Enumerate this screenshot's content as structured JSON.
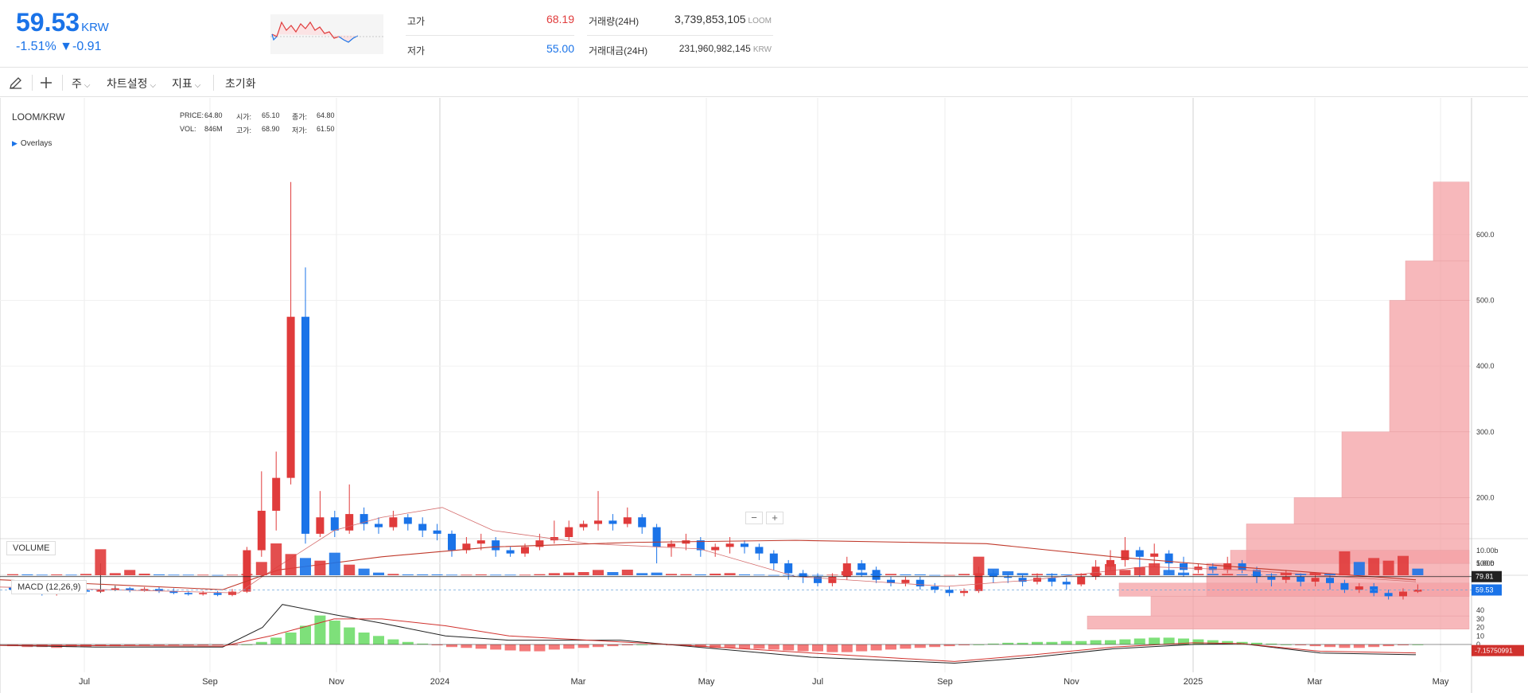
{
  "ticker": {
    "price": "59.53",
    "currency": "KRW",
    "change_pct": "-1.51%",
    "change_arrow": "▼",
    "change_abs": "-0.91"
  },
  "stats": {
    "high_label": "고가",
    "high_value": "68.19",
    "low_label": "저가",
    "low_value": "55.00",
    "volume_label": "거래량(24H)",
    "volume_value": "3,739,853,105",
    "volume_unit": "LOOM",
    "amount_label": "거래대금(24H)",
    "amount_value": "231,960,982,145",
    "amount_unit": "KRW"
  },
  "toolbar": {
    "period_label": "주",
    "chart_settings_label": "차트설정",
    "indicators_label": "지표",
    "reset_label": "초기화"
  },
  "chart": {
    "symbol": "LOOM/KRW",
    "overlays_label": "Overlays",
    "info": {
      "price_label": "PRICE:",
      "price_value": "64.80",
      "open_label": "시가:",
      "open_value": "65.10",
      "close_label": "종가:",
      "close_value": "64.80",
      "vol_label": "VOL:",
      "vol_value": "846M",
      "high_label": "고가:",
      "high_value": "68.90",
      "low_label": "저가:",
      "low_value": "61.50"
    },
    "volume_label": "VOLUME",
    "macd_label": "MACD (12,26,9)",
    "price_axis": [
      "100.0",
      "200.0",
      "300.0",
      "400.0",
      "500.0",
      "600.0"
    ],
    "volume_axis": [
      "5.00b",
      "10.00b"
    ],
    "macd_axis": [
      "0",
      "10",
      "20",
      "30",
      "40"
    ],
    "x_axis": [
      "Jul",
      "Sep",
      "Nov",
      "2024",
      "Mar",
      "May",
      "Jul",
      "Sep",
      "Nov",
      "2025",
      "Mar",
      "May"
    ],
    "last_price_tag": "59.53",
    "ref_price_tag": "79.81",
    "macd_value_tag": "-7.15750991",
    "zoom_minus": "−",
    "zoom_plus": "+",
    "colors": {
      "up": "#e03b3b",
      "down": "#1a73e8",
      "hist_pos": "#7ee07a",
      "hist_neg": "#f47a7a",
      "vprofile": "#f4a0a4"
    }
  },
  "chart_data": {
    "type": "candlestick",
    "symbol": "LOOM/KRW",
    "period": "weekly",
    "candles": [
      [
        63,
        60,
        66,
        58
      ],
      [
        60,
        57,
        63,
        55
      ],
      [
        57,
        53,
        60,
        51
      ],
      [
        53,
        56,
        59,
        51
      ],
      [
        56,
        59,
        62,
        54
      ],
      [
        59,
        57,
        62,
        55
      ],
      [
        57,
        60,
        100,
        55
      ],
      [
        60,
        62,
        66,
        58
      ],
      [
        62,
        59,
        64,
        56
      ],
      [
        59,
        61,
        64,
        57
      ],
      [
        61,
        58,
        64,
        55
      ],
      [
        58,
        55,
        62,
        53
      ],
      [
        55,
        53,
        58,
        51
      ],
      [
        53,
        55,
        58,
        51
      ],
      [
        55,
        52,
        58,
        50
      ],
      [
        52,
        57,
        61,
        50
      ],
      [
        57,
        120,
        125,
        55
      ],
      [
        120,
        180,
        240,
        110
      ],
      [
        180,
        230,
        270,
        150
      ],
      [
        230,
        475,
        680,
        220
      ],
      [
        475,
        145,
        550,
        130
      ],
      [
        145,
        170,
        210,
        140
      ],
      [
        170,
        150,
        180,
        140
      ],
      [
        150,
        175,
        220,
        145
      ],
      [
        175,
        160,
        185,
        150
      ],
      [
        160,
        155,
        170,
        145
      ],
      [
        155,
        170,
        180,
        150
      ],
      [
        170,
        160,
        175,
        150
      ],
      [
        160,
        150,
        170,
        140
      ],
      [
        150,
        145,
        160,
        135
      ],
      [
        145,
        120,
        150,
        110
      ],
      [
        120,
        130,
        140,
        115
      ],
      [
        130,
        135,
        145,
        120
      ],
      [
        135,
        120,
        140,
        110
      ],
      [
        120,
        115,
        125,
        110
      ],
      [
        115,
        125,
        130,
        110
      ],
      [
        125,
        135,
        145,
        120
      ],
      [
        135,
        140,
        165,
        130
      ],
      [
        140,
        155,
        165,
        135
      ],
      [
        155,
        160,
        165,
        150
      ],
      [
        160,
        165,
        210,
        150
      ],
      [
        165,
        160,
        175,
        150
      ],
      [
        160,
        170,
        185,
        155
      ],
      [
        170,
        155,
        175,
        145
      ],
      [
        155,
        125,
        160,
        100
      ],
      [
        125,
        130,
        135,
        110
      ],
      [
        130,
        135,
        145,
        120
      ],
      [
        135,
        120,
        140,
        110
      ],
      [
        120,
        125,
        130,
        110
      ],
      [
        125,
        130,
        140,
        115
      ],
      [
        130,
        125,
        135,
        115
      ],
      [
        125,
        115,
        130,
        105
      ],
      [
        115,
        100,
        120,
        90
      ],
      [
        100,
        85,
        105,
        75
      ],
      [
        85,
        80,
        90,
        70
      ],
      [
        80,
        70,
        85,
        65
      ],
      [
        70,
        80,
        85,
        65
      ],
      [
        80,
        100,
        110,
        75
      ],
      [
        100,
        90,
        105,
        80
      ],
      [
        90,
        75,
        95,
        70
      ],
      [
        75,
        70,
        80,
        65
      ],
      [
        70,
        75,
        80,
        65
      ],
      [
        75,
        65,
        80,
        60
      ],
      [
        65,
        60,
        70,
        55
      ],
      [
        60,
        55,
        65,
        50
      ],
      [
        55,
        58,
        62,
        50
      ],
      [
        58,
        85,
        95,
        55
      ],
      [
        85,
        80,
        90,
        70
      ],
      [
        80,
        78,
        85,
        70
      ],
      [
        78,
        72,
        82,
        65
      ],
      [
        72,
        78,
        85,
        68
      ],
      [
        78,
        72,
        85,
        65
      ],
      [
        72,
        68,
        78,
        60
      ],
      [
        68,
        80,
        85,
        65
      ],
      [
        80,
        95,
        105,
        75
      ],
      [
        95,
        105,
        120,
        90
      ],
      [
        105,
        120,
        140,
        95
      ],
      [
        120,
        110,
        125,
        80
      ],
      [
        110,
        115,
        130,
        95
      ],
      [
        115,
        100,
        120,
        85
      ],
      [
        100,
        90,
        110,
        80
      ],
      [
        90,
        95,
        100,
        85
      ],
      [
        95,
        90,
        100,
        85
      ],
      [
        90,
        100,
        110,
        85
      ],
      [
        100,
        90,
        105,
        85
      ],
      [
        90,
        80,
        95,
        70
      ],
      [
        80,
        75,
        85,
        65
      ],
      [
        75,
        80,
        90,
        70
      ],
      [
        80,
        72,
        85,
        65
      ],
      [
        72,
        78,
        85,
        65
      ],
      [
        78,
        70,
        82,
        60
      ],
      [
        70,
        60,
        75,
        55
      ],
      [
        60,
        65,
        70,
        55
      ],
      [
        65,
        55,
        70,
        50
      ],
      [
        55,
        50,
        60,
        45
      ],
      [
        50,
        57,
        62,
        45
      ],
      [
        57,
        60,
        68,
        55
      ]
    ]
  }
}
